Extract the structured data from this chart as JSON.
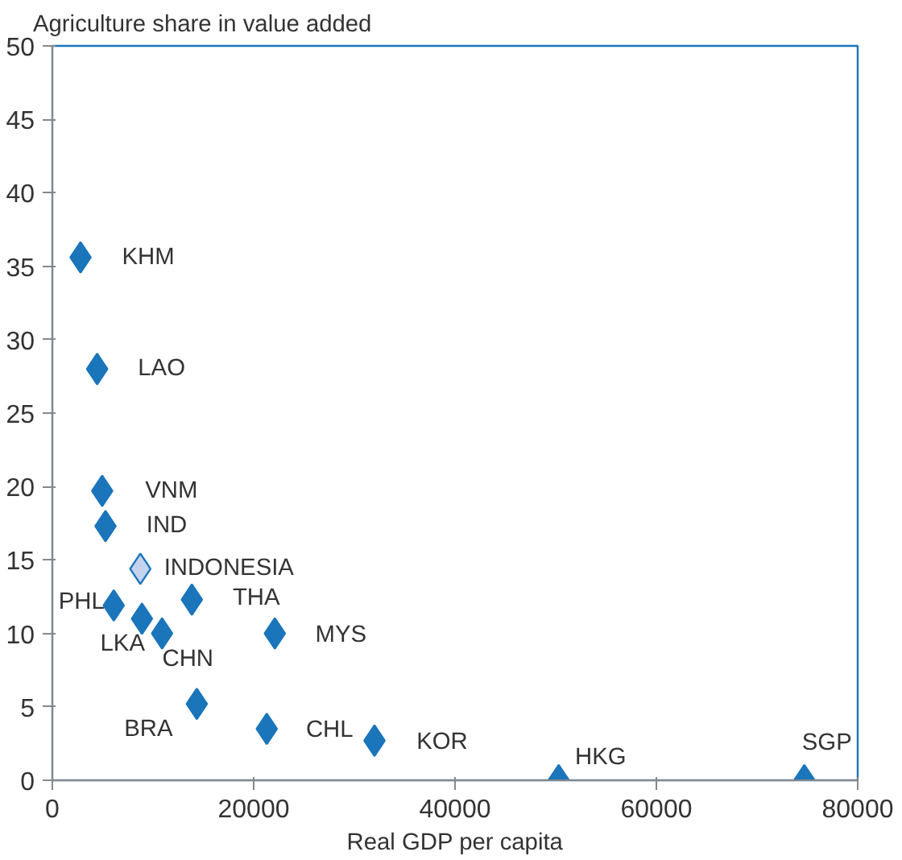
{
  "chart_data": {
    "type": "scatter",
    "xlabel": "Real GDP per capita",
    "ylabel": "Agriculture share in value added",
    "marker": "diamond",
    "grid": false,
    "xlim": [
      0,
      80000
    ],
    "xticks": [
      0,
      20000,
      40000,
      60000,
      80000
    ],
    "ylim": [
      0,
      50
    ],
    "yticks": [
      0,
      5,
      10,
      15,
      20,
      25,
      30,
      35,
      40,
      45,
      50
    ],
    "series": [
      {
        "color": "#1a75bb",
        "x": [
          2800,
          4450,
          4950,
          5280,
          6100,
          8900,
          10900,
          13860,
          22100,
          14350,
          21300,
          32000,
          50300,
          74700
        ],
        "values": [
          35.6,
          28.0,
          19.7,
          17.3,
          11.9,
          11.0,
          10.0,
          12.3,
          10.0,
          5.2,
          3.5,
          2.7,
          0,
          0
        ]
      },
      {
        "color": "#c5d3ee",
        "x": [
          8740
        ],
        "values": [
          14.4
        ]
      }
    ],
    "annotations": [
      {
        "text": "KHM",
        "x": 2800,
        "y": 35.6
      },
      {
        "text": "LAO",
        "x": 4450,
        "y": 28.0
      },
      {
        "text": "VNM",
        "x": 4950,
        "y": 19.7
      },
      {
        "text": "IND",
        "x": 5280,
        "y": 17.3
      },
      {
        "text": "INDONESIA",
        "x": 8740,
        "y": 14.4
      },
      {
        "text": "PHL",
        "x": 6100,
        "y": 11.9
      },
      {
        "text": "THA",
        "x": 13860,
        "y": 12.3
      },
      {
        "text": "MYS",
        "x": 22100,
        "y": 10.0
      },
      {
        "text": "LKA",
        "x": 8900,
        "y": 11.0
      },
      {
        "text": "CHN",
        "x": 10900,
        "y": 10.0
      },
      {
        "text": "BRA",
        "x": 14350,
        "y": 5.2
      },
      {
        "text": "CHL",
        "x": 21300,
        "y": 3.5
      },
      {
        "text": "KOR",
        "x": 32000,
        "y": 2.7
      },
      {
        "text": "HKG",
        "x": 50300,
        "y": 0
      },
      {
        "text": "SGP",
        "x": 74700,
        "y": 0
      }
    ]
  }
}
